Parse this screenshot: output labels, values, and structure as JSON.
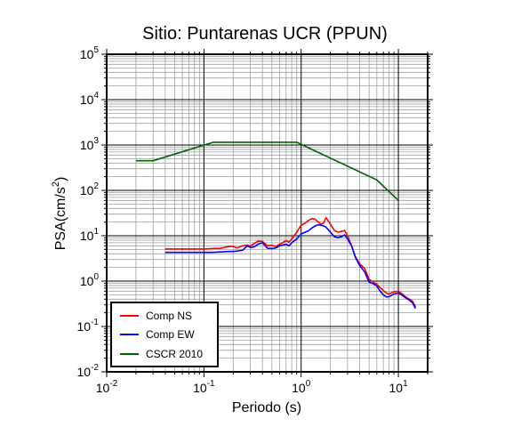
{
  "chart_data": {
    "type": "line",
    "title": "Sitio: Puntarenas UCR (PPUN)",
    "xlabel": "Periodo (s)",
    "ylabel_main": "PSA(cm/s",
    "ylabel_sup": "2",
    "ylabel_close": ")",
    "x_scale": "log",
    "y_scale": "log",
    "xlim": [
      0.01,
      20
    ],
    "ylim": [
      0.01,
      100000
    ],
    "grid": true,
    "legend_position": "bottom-left",
    "x_ticks": [
      {
        "value": 0.01,
        "base": "10",
        "exp": "-2"
      },
      {
        "value": 0.1,
        "base": "10",
        "exp": "-1"
      },
      {
        "value": 1,
        "base": "10",
        "exp": "0"
      },
      {
        "value": 10,
        "base": "10",
        "exp": "1"
      }
    ],
    "y_ticks": [
      {
        "value": 0.01,
        "base": "10",
        "exp": "-2"
      },
      {
        "value": 0.1,
        "base": "10",
        "exp": "-1"
      },
      {
        "value": 1,
        "base": "10",
        "exp": "0"
      },
      {
        "value": 10,
        "base": "10",
        "exp": "1"
      },
      {
        "value": 100,
        "base": "10",
        "exp": "2"
      },
      {
        "value": 1000,
        "base": "10",
        "exp": "3"
      },
      {
        "value": 10000,
        "base": "10",
        "exp": "4"
      },
      {
        "value": 100000,
        "base": "10",
        "exp": "5"
      }
    ],
    "series": [
      {
        "name": "Comp NS",
        "color": "#ff0000",
        "x": [
          0.04,
          0.05,
          0.06,
          0.08,
          0.1,
          0.12,
          0.15,
          0.18,
          0.2,
          0.22,
          0.25,
          0.28,
          0.3,
          0.33,
          0.36,
          0.4,
          0.45,
          0.5,
          0.55,
          0.6,
          0.7,
          0.75,
          0.8,
          0.9,
          1.0,
          1.1,
          1.2,
          1.3,
          1.4,
          1.5,
          1.6,
          1.7,
          1.8,
          2.0,
          2.2,
          2.4,
          2.6,
          2.8,
          3.0,
          3.3,
          3.6,
          4.0,
          4.5,
          5.0,
          5.5,
          6.0,
          6.5,
          7.0,
          7.5,
          8.0,
          9.0,
          10.0,
          11.0,
          12.0,
          13.0,
          14.0,
          15.0
        ],
        "y": [
          5.1,
          5.1,
          5.1,
          5.1,
          5.1,
          5.2,
          5.3,
          5.8,
          5.8,
          5.4,
          6.0,
          6.2,
          5.9,
          6.8,
          7.6,
          7.5,
          6.0,
          6.2,
          5.8,
          6.5,
          7.8,
          7.2,
          8.5,
          12.0,
          17.0,
          19.0,
          22.0,
          24.0,
          23.0,
          20.0,
          18.0,
          19.0,
          25.0,
          18.0,
          13.0,
          12.0,
          12.5,
          13.0,
          10.0,
          6.0,
          3.5,
          2.4,
          1.9,
          1.1,
          0.95,
          0.85,
          0.72,
          0.62,
          0.55,
          0.52,
          0.58,
          0.6,
          0.52,
          0.44,
          0.4,
          0.36,
          0.27
        ]
      },
      {
        "name": "Comp EW",
        "color": "#0000ff",
        "x": [
          0.04,
          0.05,
          0.06,
          0.08,
          0.1,
          0.12,
          0.15,
          0.18,
          0.2,
          0.22,
          0.25,
          0.28,
          0.3,
          0.33,
          0.36,
          0.4,
          0.45,
          0.5,
          0.55,
          0.6,
          0.7,
          0.75,
          0.8,
          0.9,
          1.0,
          1.1,
          1.2,
          1.3,
          1.4,
          1.5,
          1.6,
          1.7,
          1.8,
          2.0,
          2.2,
          2.4,
          2.6,
          2.8,
          3.0,
          3.3,
          3.6,
          4.0,
          4.5,
          5.0,
          5.5,
          6.0,
          6.5,
          7.0,
          7.5,
          8.0,
          9.0,
          10.0,
          11.0,
          12.0,
          13.0,
          14.0,
          15.0
        ],
        "y": [
          4.3,
          4.3,
          4.3,
          4.3,
          4.3,
          4.3,
          4.4,
          4.5,
          4.5,
          4.6,
          4.8,
          6.0,
          5.5,
          5.7,
          6.5,
          7.0,
          5.3,
          5.2,
          5.4,
          6.0,
          6.5,
          6.0,
          7.0,
          8.5,
          11.0,
          12.0,
          13.0,
          15.0,
          16.5,
          17.5,
          17.0,
          16.5,
          15.5,
          12.0,
          9.5,
          9.0,
          9.5,
          10.5,
          8.5,
          6.0,
          3.4,
          2.2,
          1.6,
          0.95,
          0.88,
          0.78,
          0.6,
          0.5,
          0.45,
          0.45,
          0.52,
          0.55,
          0.48,
          0.42,
          0.38,
          0.33,
          0.25
        ]
      },
      {
        "name": "CSCR 2010",
        "color": "#006400",
        "x": [
          0.02,
          0.03,
          0.125,
          0.9,
          6.0,
          10.0
        ],
        "y": [
          450,
          450,
          1150,
          1150,
          170,
          60
        ]
      }
    ]
  }
}
